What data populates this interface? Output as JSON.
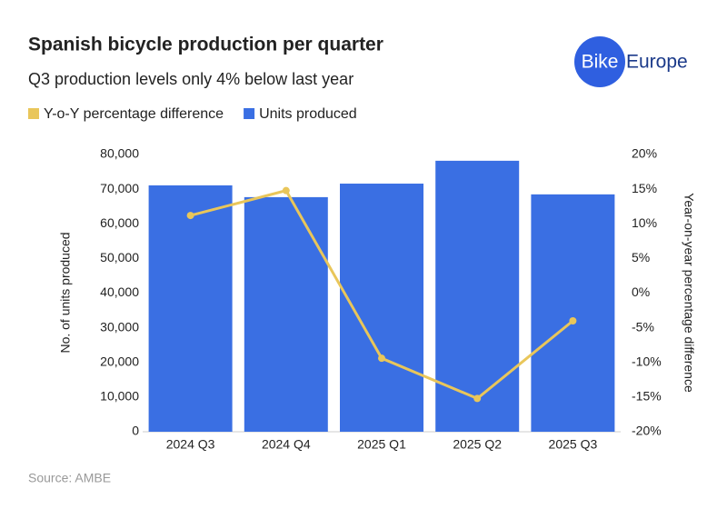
{
  "chart_data": {
    "type": "bar",
    "title": "Spanish bicycle production per quarter",
    "subtitle": "Q3 production levels only 4% below last year",
    "logo": {
      "left": "Bike",
      "right": "Europe"
    },
    "source": "Source: AMBE",
    "y_label": "No. of units produced",
    "y2_label": "Year-on-year percentage difference",
    "categories": [
      "2024 Q3",
      "2024 Q4",
      "2025 Q1",
      "2025 Q2",
      "2025 Q3"
    ],
    "series": [
      {
        "name": "Y-o-Y percentage difference",
        "type": "line",
        "axis": "y2",
        "color": "#e9c65a",
        "values": [
          11.2,
          14.8,
          -9.4,
          -15.2,
          -4
        ]
      },
      {
        "name": "Units produced",
        "type": "bar",
        "color": "#3a6fe3",
        "values": [
          71100,
          67700,
          71600,
          78200,
          68500
        ]
      }
    ],
    "ylim": [
      0,
      80000
    ],
    "yticks": [
      0,
      {
        "value": 10000,
        "label": "10,000"
      },
      {
        "value": 20000,
        "label": "20,000"
      },
      {
        "value": 30000,
        "label": "30,000"
      },
      {
        "value": 40000,
        "label": "40,000"
      },
      {
        "value": 50000,
        "label": "50,000"
      },
      {
        "value": 60000,
        "label": "60,000"
      },
      {
        "value": 70000,
        "label": "70,000"
      },
      {
        "value": 80000,
        "label": "80,000"
      }
    ],
    "y2lim": [
      -20,
      20
    ],
    "y2ticks": [
      {
        "value": -20,
        "label": "-20%"
      },
      {
        "value": -15,
        "label": "-15%"
      },
      {
        "value": -10,
        "label": "-10%"
      },
      {
        "value": -5,
        "label": "-5%"
      },
      {
        "value": 0,
        "label": "0%"
      },
      {
        "value": 5,
        "label": "5%"
      },
      {
        "value": 10,
        "label": "10%"
      },
      {
        "value": 15,
        "label": "15%"
      },
      {
        "value": 20,
        "label": "20%"
      }
    ],
    "grid": false
  }
}
